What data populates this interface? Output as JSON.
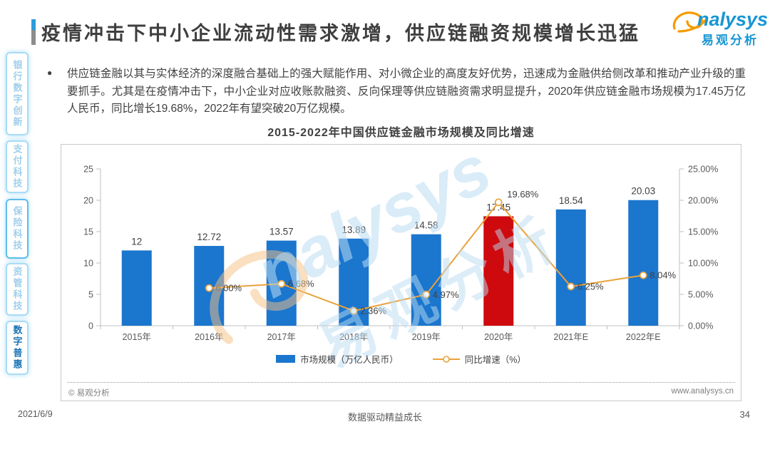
{
  "page": {
    "title": "疫情冲击下中小企业流动性需求激增，供应链融资规模增长迅猛",
    "footer": {
      "date": "2021/6/9",
      "slogan": "数据驱动精益成长",
      "page_number": "34"
    }
  },
  "logo": {
    "wordmark": "nalysys",
    "brand_cn": "易观分析"
  },
  "sidebar": {
    "items": [
      {
        "label": "银行数字创新",
        "active": false,
        "emphasized_border": false
      },
      {
        "label": "支付科技",
        "active": false,
        "emphasized_border": false
      },
      {
        "label": "保险科技",
        "active": false,
        "emphasized_border": true
      },
      {
        "label": "资管科技",
        "active": false,
        "emphasized_border": false
      },
      {
        "label": "数字普惠",
        "active": true,
        "emphasized_border": false
      }
    ]
  },
  "body": {
    "bullet_text": "供应链金融以其与实体经济的深度融合基础上的强大赋能作用、对小微企业的高度友好优势，迅速成为金融供给侧改革和推动产业升级的重要抓手。尤其是在疫情冲击下，中小企业对应收账款融资、反向保理等供应链融资需求明显提升，2020年供应链金融市场规模为17.45万亿人民币，同比增长19.68%，2022年有望突破20万亿规模。"
  },
  "chart_data": {
    "type": "bar",
    "title": "2015-2022年中国供应链金融市场规模及同比增速",
    "categories": [
      "2015年",
      "2016年",
      "2017年",
      "2018年",
      "2019年",
      "2020年",
      "2021年E",
      "2022年E"
    ],
    "series": [
      {
        "name": "市场规模（万亿人民币）",
        "type": "bar",
        "values": [
          12,
          12.72,
          13.57,
          13.89,
          14.58,
          17.45,
          18.54,
          20.03
        ],
        "labels": [
          "12",
          "12.72",
          "13.57",
          "13.89",
          "14.58",
          "17.45",
          "18.54",
          "20.03"
        ]
      },
      {
        "name": "同比增速（%）",
        "type": "line",
        "values": [
          null,
          6.0,
          6.68,
          2.36,
          4.97,
          19.68,
          6.25,
          8.04
        ],
        "labels": [
          "",
          "6.00%",
          "6.68%",
          "2.36%",
          "4.97%",
          "19.68%",
          "6.25%",
          "8.04%"
        ]
      }
    ],
    "left_axis": {
      "ticks": [
        "0",
        "5",
        "10",
        "15",
        "20",
        "25"
      ],
      "min": 0,
      "max": 25
    },
    "right_axis": {
      "ticks": [
        "0.00%",
        "5.00%",
        "10.00%",
        "15.00%",
        "20.00%",
        "25.00%"
      ],
      "min": 0,
      "max": 25
    },
    "highlight_index": 5,
    "bar_color": "#1b76ce",
    "highlight_color": "#ce0a0e",
    "line_color": "#e9a23b",
    "legend_position": "bottom",
    "grid": false,
    "copyright": "© 易观分析",
    "website": "www.analysys.cn"
  }
}
